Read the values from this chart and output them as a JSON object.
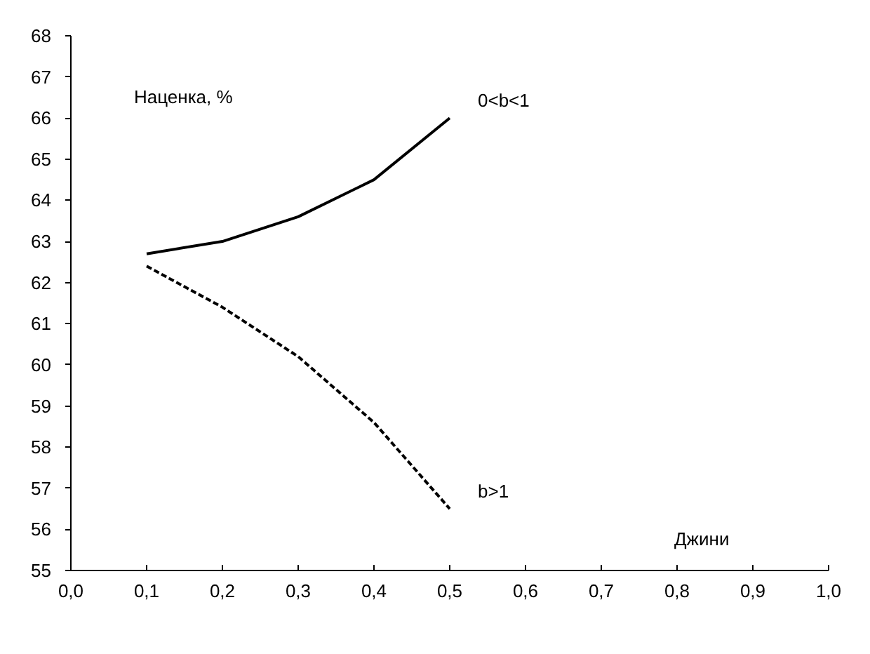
{
  "chart_data": {
    "type": "line",
    "ylabel": "Наценка, %",
    "xlabel": "Джини",
    "x": [
      0.1,
      0.2,
      0.3,
      0.4,
      0.5
    ],
    "series": [
      {
        "name": "0<b<1",
        "color": "#000000",
        "line_style": "solid",
        "values": [
          62.7,
          63.0,
          63.6,
          64.5,
          66.0
        ]
      },
      {
        "name": "b>1",
        "color": "#000000",
        "line_style": "dashed",
        "values": [
          62.4,
          61.4,
          60.2,
          58.6,
          56.5
        ]
      }
    ],
    "xlim": [
      0,
      1
    ],
    "ylim": [
      55,
      68
    ],
    "xticks": [
      {
        "value": 0,
        "label": "0,0"
      },
      {
        "value": 0.1,
        "label": "0,1"
      },
      {
        "value": 0.2,
        "label": "0,2"
      },
      {
        "value": 0.3,
        "label": "0,3"
      },
      {
        "value": 0.4,
        "label": "0,4"
      },
      {
        "value": 0.5,
        "label": "0,5"
      },
      {
        "value": 0.6,
        "label": "0,6"
      },
      {
        "value": 0.7,
        "label": "0,7"
      },
      {
        "value": 0.8,
        "label": "0,8"
      },
      {
        "value": 0.9,
        "label": "0,9"
      },
      {
        "value": 1,
        "label": "1,0"
      }
    ],
    "yticks": [
      55,
      56,
      57,
      58,
      59,
      60,
      61,
      62,
      63,
      64,
      65,
      66,
      67,
      68
    ],
    "grid": false,
    "legend": false,
    "marker": "none"
  }
}
